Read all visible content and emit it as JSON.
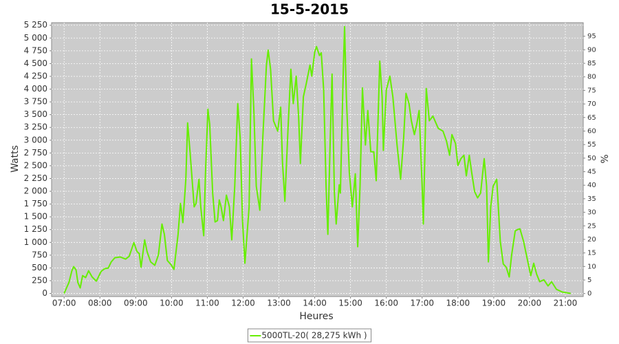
{
  "chart_data": {
    "type": "line",
    "title": "15-5-2015",
    "x_label": "Heures",
    "y_label": "Watts",
    "y2_label": "%",
    "xlim": [
      "06:39",
      "21:30"
    ],
    "xticks": [
      "07:00",
      "08:00",
      "09:00",
      "10:00",
      "11:00",
      "12:00",
      "13:00",
      "14:00",
      "15:00",
      "16:00",
      "17:00",
      "18:00",
      "19:00",
      "20:00",
      "21:00"
    ],
    "ylim": [
      -60,
      5300
    ],
    "yticks": [
      0,
      250,
      500,
      750,
      {
        "value": 1000,
        "label": "1 000"
      },
      {
        "value": 1250,
        "label": "1 250"
      },
      {
        "value": 1500,
        "label": "1 500"
      },
      {
        "value": 1750,
        "label": "1 750"
      },
      {
        "value": 2000,
        "label": "2 000"
      },
      {
        "value": 2250,
        "label": "2 250"
      },
      {
        "value": 2500,
        "label": "2 500"
      },
      {
        "value": 2750,
        "label": "2 750"
      },
      {
        "value": 3000,
        "label": "3 000"
      },
      {
        "value": 3250,
        "label": "3 250"
      },
      {
        "value": 3500,
        "label": "3 500"
      },
      {
        "value": 3750,
        "label": "3 750"
      },
      {
        "value": 4000,
        "label": "4 000"
      },
      {
        "value": 4250,
        "label": "4 250"
      },
      {
        "value": 4500,
        "label": "4 500"
      },
      {
        "value": 4750,
        "label": "4 750"
      },
      {
        "value": 5000,
        "label": "5 000"
      },
      {
        "value": 5250,
        "label": "5 250"
      }
    ],
    "y2lim": [
      -1.1,
      100
    ],
    "y2ticks": [
      0,
      5,
      10,
      15,
      20,
      25,
      30,
      35,
      40,
      45,
      50,
      55,
      60,
      65,
      70,
      75,
      80,
      85,
      90,
      95
    ],
    "grid": true,
    "legend": "bottom",
    "x": [
      "07:00",
      "07:08",
      "07:13",
      "07:16",
      "07:20",
      "07:23",
      "07:27",
      "07:31",
      "07:36",
      "07:41",
      "07:47",
      "07:54",
      "08:02",
      "08:08",
      "08:14",
      "08:19",
      "08:25",
      "08:34",
      "08:43",
      "08:49",
      "08:57",
      "09:02",
      "09:06",
      "09:09",
      "09:15",
      "09:19",
      "09:25",
      "09:32",
      "09:38",
      "09:44",
      "09:48",
      "09:53",
      "10:00",
      "10:04",
      "10:11",
      "10:15",
      "10:19",
      "10:24",
      "10:27",
      "10:31",
      "10:38",
      "10:41",
      "10:46",
      "10:49",
      "10:54",
      "10:57",
      "11:01",
      "11:04",
      "11:09",
      "11:13",
      "11:17",
      "11:20",
      "11:23",
      "11:27",
      "11:32",
      "11:37",
      "11:41",
      "11:46",
      "11:51",
      "11:55",
      "11:59",
      "12:03",
      "12:10",
      "12:14",
      "12:18",
      "12:22",
      "12:28",
      "12:33",
      "12:39",
      "12:42",
      "12:46",
      "12:51",
      "12:58",
      "13:03",
      "13:06",
      "13:10",
      "13:15",
      "13:20",
      "13:24",
      "13:29",
      "13:33",
      "13:36",
      "13:41",
      "13:46",
      "13:52",
      "13:55",
      "14:00",
      "14:03",
      "14:08",
      "14:11",
      "14:15",
      "14:19",
      "14:22",
      "14:26",
      "14:29",
      "14:33",
      "14:36",
      "14:41",
      "14:43",
      "14:48",
      "14:50",
      "14:53",
      "14:58",
      "15:03",
      "15:08",
      "15:12",
      "15:16",
      "15:20",
      "15:25",
      "15:29",
      "15:34",
      "15:39",
      "15:43",
      "15:49",
      "15:53",
      "15:55",
      "16:00",
      "16:06",
      "16:11",
      "16:18",
      "16:24",
      "16:29",
      "16:33",
      "16:38",
      "16:42",
      "16:47",
      "16:51",
      "16:55",
      "17:00",
      "17:02",
      "17:07",
      "17:12",
      "17:18",
      "17:27",
      "17:35",
      "17:41",
      "17:46",
      "17:50",
      "17:56",
      "18:00",
      "18:05",
      "18:10",
      "18:14",
      "18:19",
      "18:23",
      "18:28",
      "18:33",
      "18:38",
      "18:44",
      "18:48",
      "18:51",
      "18:55",
      "18:59",
      "19:05",
      "19:11",
      "19:16",
      "19:21",
      "19:26",
      "19:30",
      "19:36",
      "19:40",
      "19:44",
      "19:50",
      "19:56",
      "20:02",
      "20:07",
      "20:12",
      "20:17",
      "20:24",
      "20:31",
      "20:37",
      "20:45",
      "20:55",
      "21:03",
      "21:09"
    ],
    "series": [
      {
        "name": "5000TL-20( 28,275 kWh )",
        "color": "#66ee00",
        "values": [
          0,
          215,
          444,
          525,
          458,
          215,
          108,
          350,
          310,
          444,
          323,
          242,
          431,
          485,
          498,
          619,
          700,
          714,
          673,
          727,
          996,
          821,
          781,
          512,
          1050,
          821,
          619,
          552,
          754,
          1360,
          1158,
          646,
          552,
          471,
          1158,
          1764,
          1387,
          2235,
          3339,
          2773,
          1696,
          1764,
          2235,
          1696,
          1131,
          2369,
          3608,
          3312,
          1966,
          1400,
          1427,
          1831,
          1696,
          1427,
          1925,
          1696,
          1050,
          2100,
          3716,
          3043,
          1427,
          592,
          1696,
          4591,
          3581,
          2100,
          1629,
          3043,
          4456,
          4766,
          4389,
          3379,
          3177,
          3648,
          2571,
          1804,
          3177,
          4389,
          3716,
          4254,
          3447,
          2544,
          3850,
          4120,
          4470,
          4254,
          4725,
          4833,
          4658,
          4712,
          3985,
          2100,
          1158,
          3043,
          4295,
          1966,
          1360,
          2127,
          1966,
          4389,
          5223,
          3850,
          2369,
          1696,
          2342,
          915,
          2100,
          4025,
          2907,
          3581,
          2773,
          2773,
          2208,
          4550,
          3850,
          2800,
          3985,
          4254,
          3850,
          2907,
          2235,
          3043,
          3918,
          3716,
          3379,
          3110,
          3312,
          3581,
          2100,
          1360,
          4012,
          3379,
          3473,
          3231,
          3177,
          2975,
          2706,
          3110,
          2935,
          2504,
          2639,
          2706,
          2302,
          2706,
          2369,
          1992,
          1871,
          1966,
          2639,
          2100,
          619,
          1696,
          2100,
          2235,
          1023,
          579,
          512,
          323,
          754,
          1225,
          1252,
          1265,
          1023,
          687,
          350,
          592,
          377,
          229,
          269,
          148,
          229,
          81,
          27,
          13,
          0
        ]
      }
    ]
  }
}
